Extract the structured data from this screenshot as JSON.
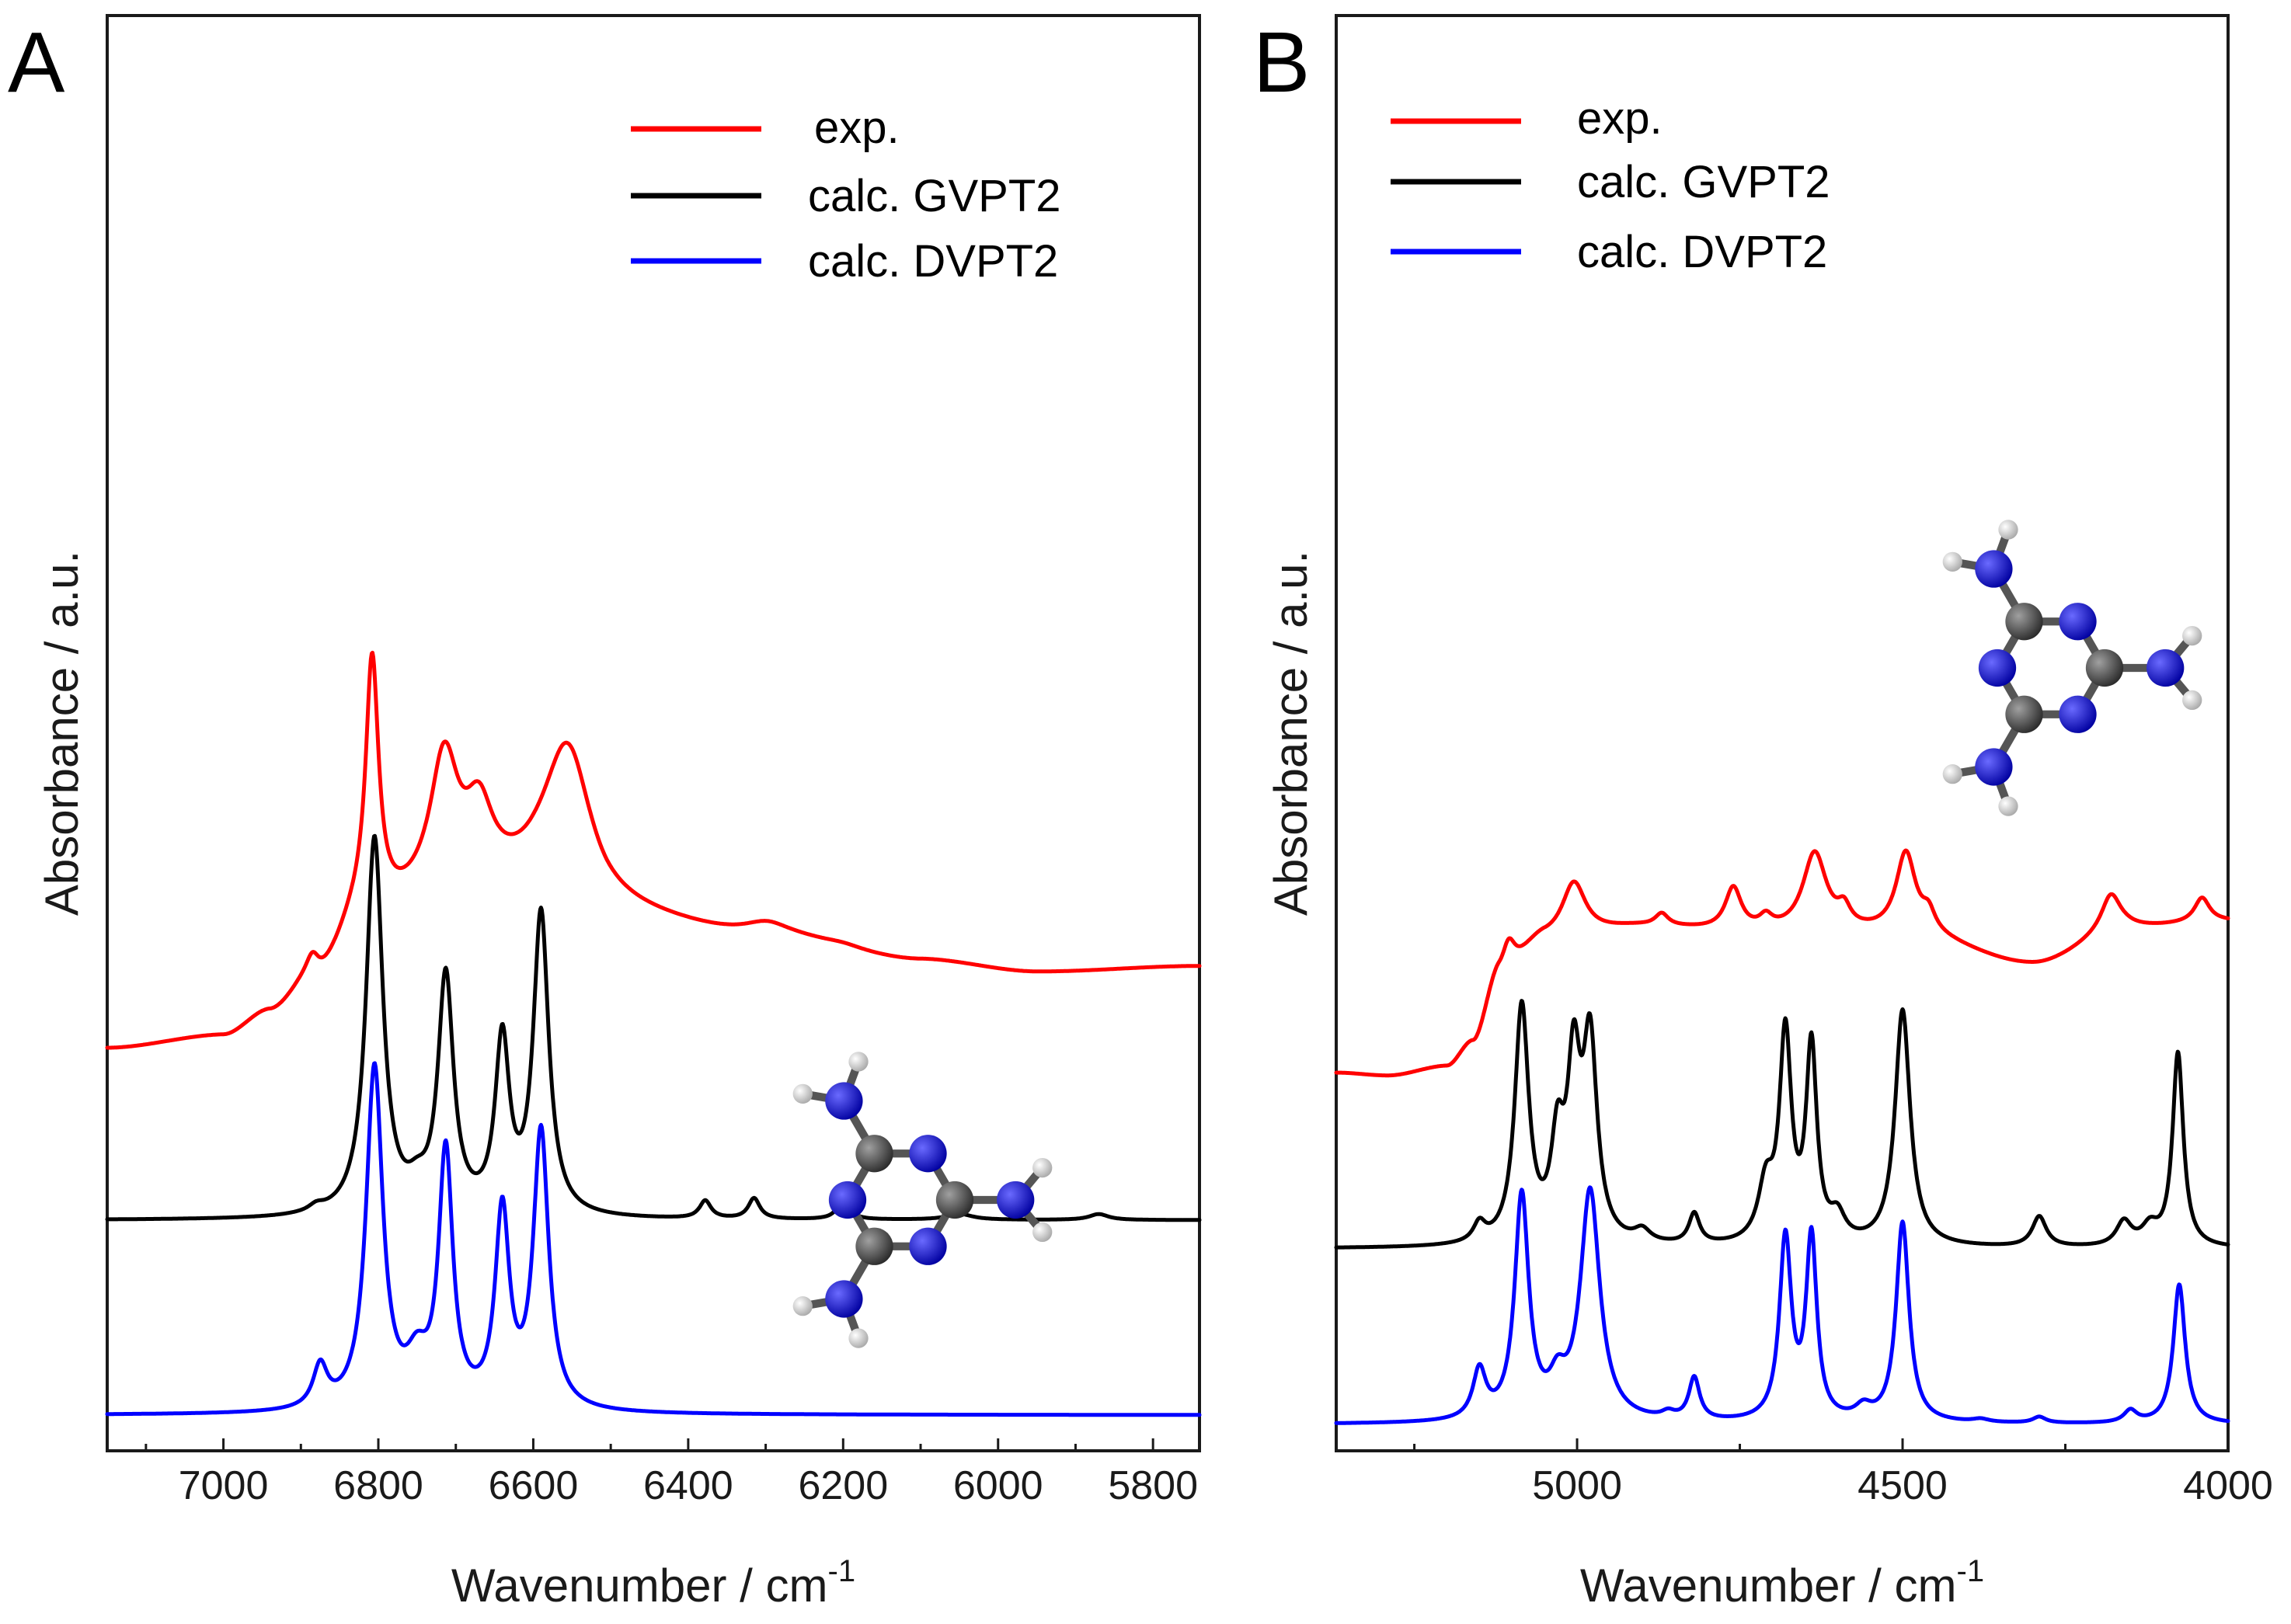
{
  "chart_data": [
    {
      "panel": "A",
      "type": "line",
      "xlabel": "Wavenumber / cm",
      "xlabel_sup": "-1",
      "ylabel": "Absorbance / a.u.",
      "xlim": [
        7150,
        5740
      ],
      "x_ticks": [
        "7000",
        "6800",
        "6600",
        "6400",
        "6200",
        "6000",
        "5800"
      ],
      "x_tick_values": [
        7000,
        6800,
        6600,
        6400,
        6200,
        6000,
        5800
      ],
      "legend": {
        "placement": "top-right",
        "entries": [
          "exp.",
          "calc. GVPT2",
          "calc. DVPT2"
        ]
      },
      "inset": "triaminotriazine molecule (ball-and-stick)",
      "series": [
        {
          "name": "exp.",
          "color": "#ff0000",
          "offset": 0.62,
          "baseline": [
            [
              7150,
              0.0
            ],
            [
              7000,
              0.02
            ],
            [
              6940,
              0.06
            ],
            [
              6880,
              0.12
            ],
            [
              6820,
              0.22
            ],
            [
              6700,
              0.26
            ],
            [
              6600,
              0.27
            ],
            [
              6500,
              0.22
            ],
            [
              6300,
              0.19
            ],
            [
              6100,
              0.15
            ],
            [
              5950,
              0.13
            ],
            [
              5740,
              0.14
            ]
          ],
          "peaks": [
            [
              6885,
              0.03,
              10
            ],
            [
              6808,
              0.43,
              10
            ],
            [
              6715,
              0.22,
              22
            ],
            [
              6670,
              0.12,
              22
            ],
            [
              6555,
              0.26,
              38
            ],
            [
              6300,
              0.02,
              35
            ],
            [
              6200,
              0.005,
              30
            ]
          ]
        },
        {
          "name": "calc. GVPT2",
          "color": "#000000",
          "offset": 0.33,
          "baseline": [
            [
              7150,
              0.0
            ],
            [
              5740,
              0.0
            ]
          ],
          "peaks": [
            [
              6880,
              0.01,
              12
            ],
            [
              6805,
              0.64,
              13
            ],
            [
              6750,
              0.03,
              15
            ],
            [
              6713,
              0.4,
              12
            ],
            [
              6640,
              0.29,
              11
            ],
            [
              6590,
              0.51,
              12
            ],
            [
              6378,
              0.03,
              9
            ],
            [
              6315,
              0.035,
              9
            ],
            [
              6200,
              0.035,
              9
            ],
            [
              6050,
              0.01,
              20
            ],
            [
              5870,
              0.01,
              15
            ]
          ]
        },
        {
          "name": "calc. DVPT2",
          "color": "#0000ff",
          "offset": 0.0,
          "baseline": [
            [
              7150,
              0.0
            ],
            [
              5740,
              0.0
            ]
          ],
          "peaks": [
            [
              6875,
              0.07,
              11
            ],
            [
              6805,
              0.58,
              13
            ],
            [
              6750,
              0.07,
              17
            ],
            [
              6713,
              0.43,
              11
            ],
            [
              6640,
              0.33,
              11
            ],
            [
              6590,
              0.47,
              12
            ]
          ]
        }
      ]
    },
    {
      "panel": "B",
      "type": "line",
      "xlabel": "Wavenumber / cm",
      "xlabel_sup": "-1",
      "ylabel": "Absorbance / a.u.",
      "xlim": [
        5370,
        4000
      ],
      "x_ticks": [
        "5000",
        "4500",
        "4000"
      ],
      "x_tick_values": [
        5000,
        4500,
        4000
      ],
      "legend": {
        "placement": "top-left",
        "entries": [
          "exp.",
          "calc. GVPT2",
          "calc. DVPT2"
        ]
      },
      "inset": "triaminotriazine molecule (ball-and-stick)",
      "series": [
        {
          "name": "exp.",
          "color": "#ff0000",
          "offset": 0.58,
          "baseline": [
            [
              5370,
              0.0
            ],
            [
              5290,
              -0.005
            ],
            [
              5200,
              0.01
            ],
            [
              5160,
              0.05
            ],
            [
              5120,
              0.16
            ],
            [
              5050,
              0.22
            ],
            [
              4900,
              0.24
            ],
            [
              4700,
              0.23
            ],
            [
              4500,
              0.23
            ],
            [
              4300,
              0.18
            ],
            [
              4150,
              0.24
            ],
            [
              4000,
              0.25
            ]
          ],
          "peaks": [
            [
              5105,
              0.05,
              12
            ],
            [
              5005,
              0.09,
              22
            ],
            [
              4870,
              0.02,
              12
            ],
            [
              4760,
              0.07,
              15
            ],
            [
              4710,
              0.02,
              12
            ],
            [
              4635,
              0.13,
              22
            ],
            [
              4590,
              0.03,
              12
            ],
            [
              4495,
              0.13,
              18
            ],
            [
              4460,
              0.03,
              12
            ],
            [
              4180,
              0.06,
              18
            ],
            [
              4040,
              0.04,
              14
            ]
          ]
        },
        {
          "name": "calc. GVPT2",
          "color": "#000000",
          "offset": 0.29,
          "baseline": [
            [
              5370,
              0.0
            ],
            [
              4000,
              0.0
            ]
          ],
          "peaks": [
            [
              5150,
              0.03,
              11
            ],
            [
              5085,
              0.39,
              13
            ],
            [
              5030,
              0.15,
              12
            ],
            [
              5005,
              0.27,
              12
            ],
            [
              4980,
              0.32,
              13
            ],
            [
              4900,
              0.02,
              15
            ],
            [
              4820,
              0.05,
              10
            ],
            [
              4710,
              0.09,
              14
            ],
            [
              4680,
              0.34,
              11
            ],
            [
              4640,
              0.32,
              10
            ],
            [
              4600,
              0.04,
              14
            ],
            [
              4500,
              0.39,
              14
            ],
            [
              4290,
              0.05,
              13
            ],
            [
              4160,
              0.04,
              14
            ],
            [
              4120,
              0.03,
              15
            ],
            [
              4077,
              0.32,
              10
            ]
          ]
        },
        {
          "name": "calc. DVPT2",
          "color": "#0000ff",
          "offset": 0.0,
          "baseline": [
            [
              5370,
              0.0
            ],
            [
              4000,
              0.0
            ]
          ],
          "peaks": [
            [
              5150,
              0.08,
              12
            ],
            [
              5085,
              0.37,
              13
            ],
            [
              5030,
              0.05,
              15
            ],
            [
              4980,
              0.38,
              18
            ],
            [
              4860,
              0.01,
              12
            ],
            [
              4820,
              0.07,
              10
            ],
            [
              4680,
              0.3,
              11
            ],
            [
              4640,
              0.3,
              10
            ],
            [
              4560,
              0.02,
              15
            ],
            [
              4500,
              0.33,
              12
            ],
            [
              4380,
              0.005,
              15
            ],
            [
              4290,
              0.01,
              12
            ],
            [
              4150,
              0.02,
              12
            ],
            [
              4075,
              0.23,
              11
            ]
          ]
        }
      ]
    }
  ]
}
